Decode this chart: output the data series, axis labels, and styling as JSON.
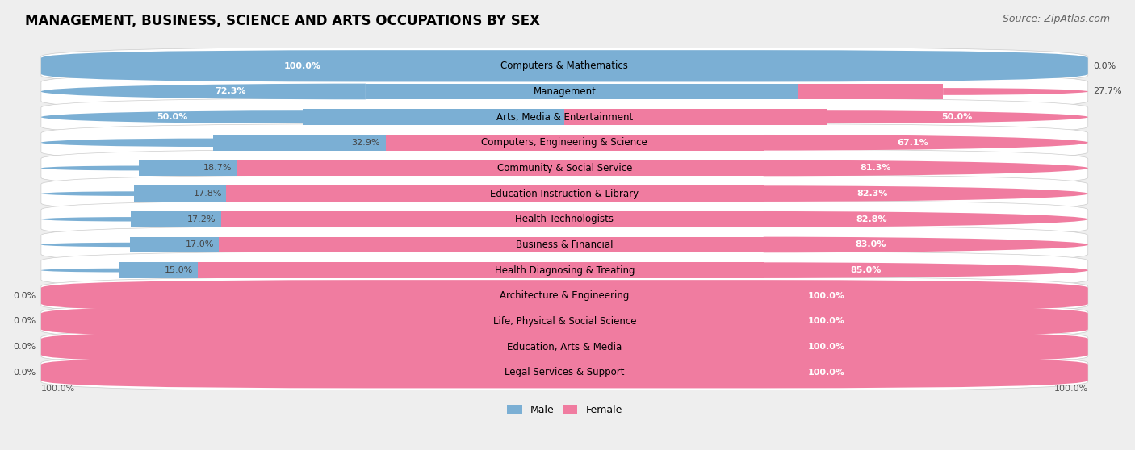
{
  "title": "MANAGEMENT, BUSINESS, SCIENCE AND ARTS OCCUPATIONS BY SEX",
  "source": "Source: ZipAtlas.com",
  "categories": [
    "Computers & Mathematics",
    "Management",
    "Arts, Media & Entertainment",
    "Computers, Engineering & Science",
    "Community & Social Service",
    "Education Instruction & Library",
    "Health Technologists",
    "Business & Financial",
    "Health Diagnosing & Treating",
    "Architecture & Engineering",
    "Life, Physical & Social Science",
    "Education, Arts & Media",
    "Legal Services & Support"
  ],
  "male_pct": [
    100.0,
    72.3,
    50.0,
    32.9,
    18.7,
    17.8,
    17.2,
    17.0,
    15.0,
    0.0,
    0.0,
    0.0,
    0.0
  ],
  "female_pct": [
    0.0,
    27.7,
    50.0,
    67.1,
    81.3,
    82.3,
    82.8,
    83.0,
    85.0,
    100.0,
    100.0,
    100.0,
    100.0
  ],
  "male_color": "#7bafd4",
  "female_color": "#f07ca0",
  "bg_color": "#eeeeee",
  "row_bg_color": "#ffffff",
  "title_fontsize": 12,
  "label_fontsize": 8.5,
  "source_fontsize": 9
}
